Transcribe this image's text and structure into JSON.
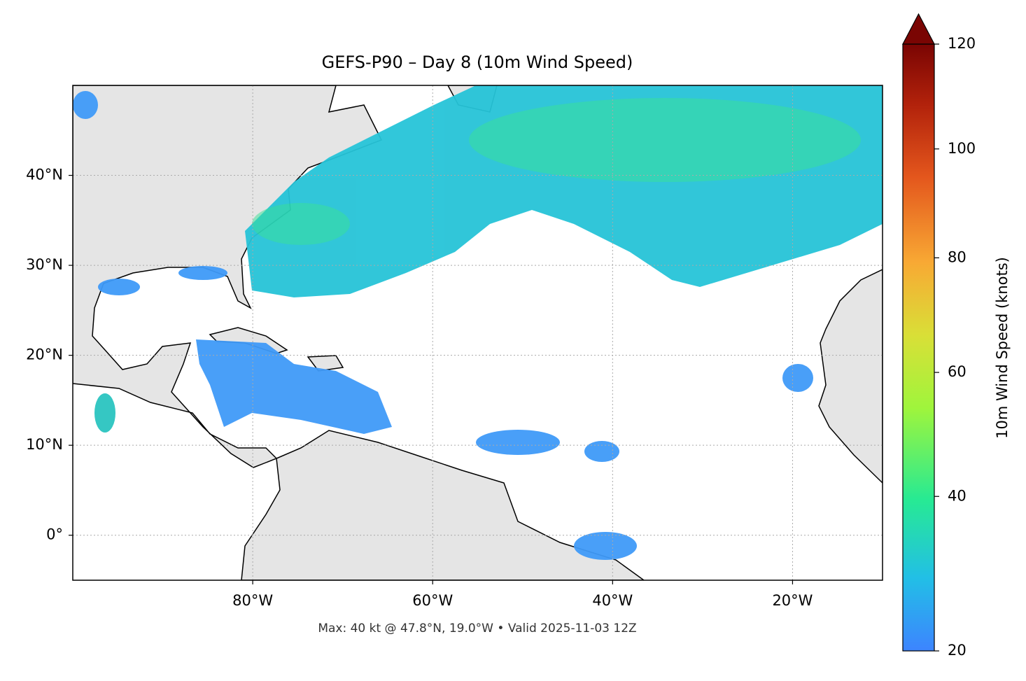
{
  "title": "GEFS-P90 – Day 8 (10m Wind Speed)",
  "footer": "Max: 40 kt @ 47.8°N, 19.0°W • Valid 2025-11-03 12Z",
  "map": {
    "xlim": [
      -100,
      -10
    ],
    "ylim": [
      -5,
      50
    ],
    "grid": true,
    "xticks": [
      {
        "value": -80,
        "label": "80°W"
      },
      {
        "value": -60,
        "label": "60°W"
      },
      {
        "value": -40,
        "label": "40°W"
      },
      {
        "value": -20,
        "label": "20°W"
      }
    ],
    "yticks": [
      {
        "value": 40,
        "label": "40°N"
      },
      {
        "value": 30,
        "label": "30°N"
      },
      {
        "value": 20,
        "label": "20°N"
      },
      {
        "value": 10,
        "label": "10°N"
      },
      {
        "value": 0,
        "label": "0°"
      }
    ]
  },
  "colorbar": {
    "label": "10m Wind Speed (knots)",
    "range": [
      20,
      120
    ],
    "gamma": 0.85,
    "ticks": [
      20,
      40,
      60,
      80,
      100,
      120
    ]
  }
}
